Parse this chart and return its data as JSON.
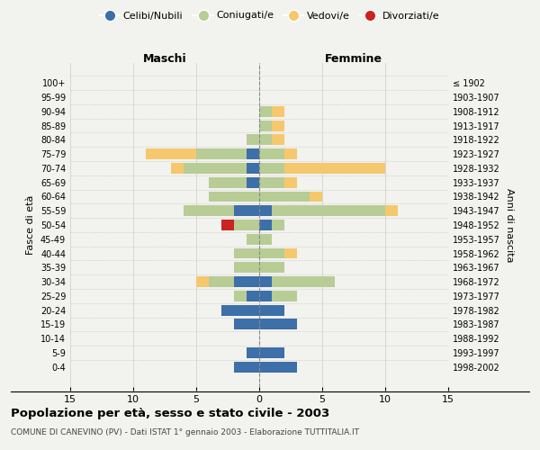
{
  "age_groups": [
    "0-4",
    "5-9",
    "10-14",
    "15-19",
    "20-24",
    "25-29",
    "30-34",
    "35-39",
    "40-44",
    "45-49",
    "50-54",
    "55-59",
    "60-64",
    "65-69",
    "70-74",
    "75-79",
    "80-84",
    "85-89",
    "90-94",
    "95-99",
    "100+"
  ],
  "birth_years": [
    "1998-2002",
    "1993-1997",
    "1988-1992",
    "1983-1987",
    "1978-1982",
    "1973-1977",
    "1968-1972",
    "1963-1967",
    "1958-1962",
    "1953-1957",
    "1948-1952",
    "1943-1947",
    "1938-1942",
    "1933-1937",
    "1928-1932",
    "1923-1927",
    "1918-1922",
    "1913-1917",
    "1908-1912",
    "1903-1907",
    "≤ 1902"
  ],
  "males": {
    "celibi": [
      2,
      1,
      0,
      2,
      3,
      1,
      2,
      0,
      0,
      0,
      0,
      2,
      0,
      1,
      1,
      1,
      0,
      0,
      0,
      0,
      0
    ],
    "coniugati": [
      0,
      0,
      0,
      0,
      0,
      1,
      2,
      2,
      2,
      1,
      2,
      4,
      4,
      3,
      5,
      4,
      1,
      0,
      0,
      0,
      0
    ],
    "vedovi": [
      0,
      0,
      0,
      0,
      0,
      0,
      1,
      0,
      0,
      0,
      0,
      0,
      0,
      0,
      1,
      4,
      0,
      0,
      0,
      0,
      0
    ],
    "divorziati": [
      0,
      0,
      0,
      0,
      0,
      0,
      0,
      0,
      0,
      0,
      1,
      0,
      0,
      0,
      0,
      0,
      0,
      0,
      0,
      0,
      0
    ]
  },
  "females": {
    "nubili": [
      3,
      2,
      0,
      3,
      2,
      1,
      1,
      0,
      0,
      0,
      1,
      1,
      0,
      0,
      0,
      0,
      0,
      0,
      0,
      0,
      0
    ],
    "coniugate": [
      0,
      0,
      0,
      0,
      0,
      2,
      5,
      2,
      2,
      1,
      1,
      9,
      4,
      2,
      2,
      2,
      1,
      1,
      1,
      0,
      0
    ],
    "vedove": [
      0,
      0,
      0,
      0,
      0,
      0,
      0,
      0,
      1,
      0,
      0,
      1,
      1,
      1,
      8,
      1,
      1,
      1,
      1,
      0,
      0
    ],
    "divorziate": [
      0,
      0,
      0,
      0,
      0,
      0,
      0,
      0,
      0,
      0,
      0,
      0,
      0,
      0,
      0,
      0,
      0,
      0,
      0,
      0,
      0
    ]
  },
  "colors": {
    "celibi": "#3d6fa8",
    "coniugati": "#b8cc96",
    "vedovi": "#f5c86e",
    "divorziati": "#cc2222"
  },
  "legend_labels": [
    "Celibi/Nubili",
    "Coniugati/e",
    "Vedovi/e",
    "Divorziati/e"
  ],
  "xlim": 15,
  "title": "Popolazione per età, sesso e stato civile - 2003",
  "subtitle": "COMUNE DI CANEVINO (PV) - Dati ISTAT 1° gennaio 2003 - Elaborazione TUTTITALIA.IT",
  "ylabel_left": "Fasce di età",
  "ylabel_right": "Anni di nascita",
  "xlabel_left": "Maschi",
  "xlabel_right": "Femmine",
  "bg_color": "#f2f2ee"
}
